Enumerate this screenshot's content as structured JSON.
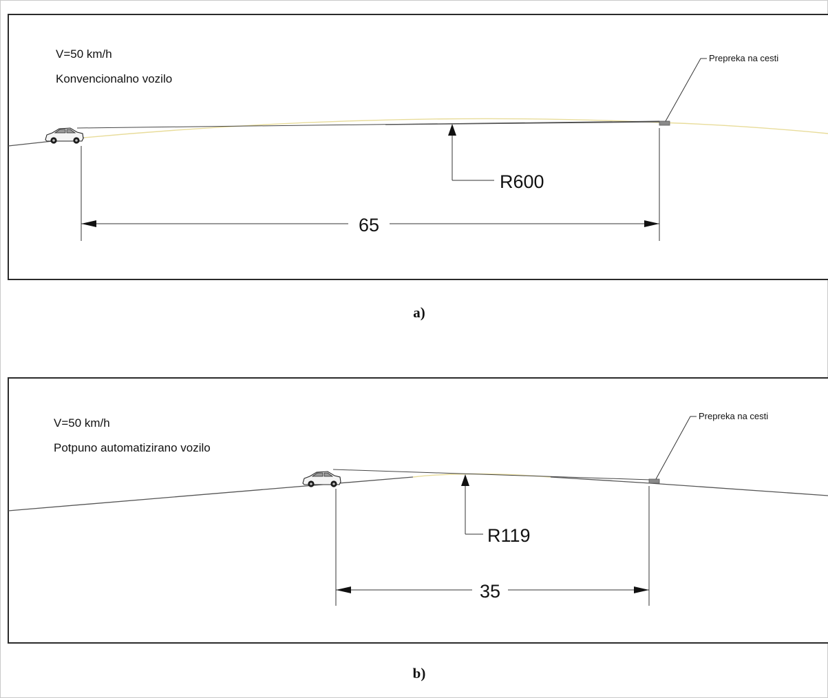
{
  "panels": [
    {
      "speed": "V=50 km/h",
      "vehicle": "Konvencionalno vozilo",
      "obstacle_label": "Prepreka na cesti",
      "radius_label": "R600",
      "distance_label": "65",
      "caption": "a)"
    },
    {
      "speed": "V=50 km/h",
      "vehicle": "Potpuno automatizirano vozilo",
      "obstacle_label": "Prepreka na cesti",
      "radius_label": "R119",
      "distance_label": "35",
      "caption": "b)"
    }
  ],
  "colors": {
    "vertical_curve": "#e8dc9a",
    "obstacle": "#8a8a8a",
    "lines": "#333333"
  }
}
